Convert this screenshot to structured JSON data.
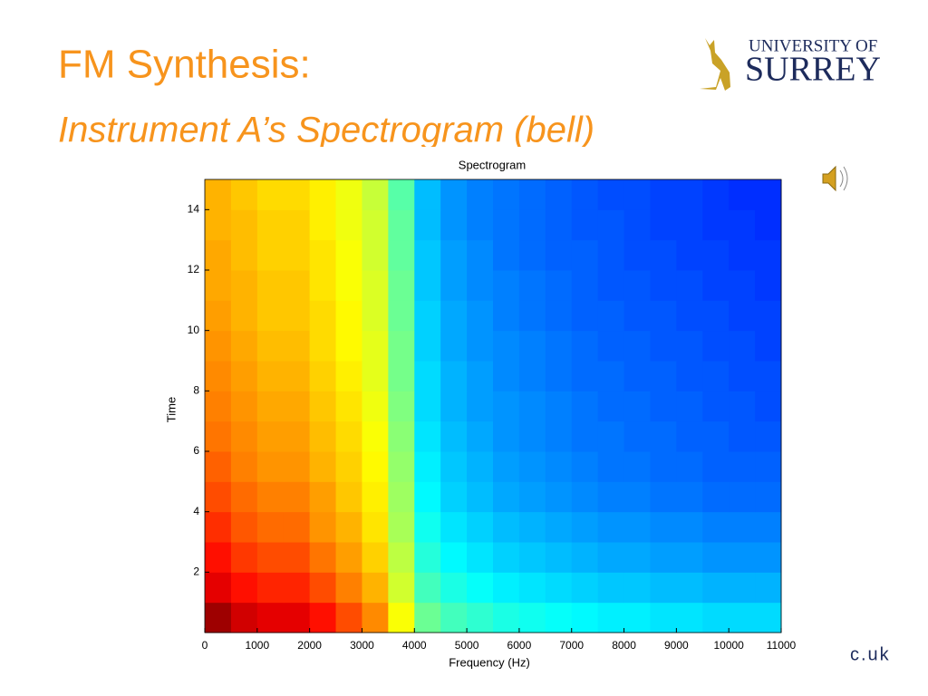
{
  "slide": {
    "title": "FM Synthesis:",
    "subtitle": "Instrument A’s Spectrogram (bell)",
    "logo_top": "UNIVERSITY OF",
    "logo_main": "SURREY",
    "footer": "c.uk"
  },
  "chart_data": {
    "type": "heatmap",
    "title": "Spectrogram",
    "xlabel": "Frequency (Hz)",
    "ylabel": "Time",
    "colormap": "jet",
    "clim": [
      0,
      1
    ],
    "xlim": [
      0,
      11000
    ],
    "ylim": [
      0,
      15
    ],
    "xticks": [
      0,
      1000,
      2000,
      3000,
      4000,
      5000,
      6000,
      7000,
      8000,
      9000,
      10000,
      11000
    ],
    "yticks": [
      2,
      4,
      6,
      8,
      10,
      12,
      14
    ],
    "x_edges": [
      0,
      500,
      1000,
      1500,
      2000,
      2500,
      3000,
      3500,
      4000,
      4500,
      5000,
      5500,
      6000,
      6500,
      7000,
      7500,
      8000,
      8500,
      9000,
      9500,
      10000,
      10500,
      11000
    ],
    "y_edges": [
      0,
      1,
      2,
      3,
      4,
      5,
      6,
      7,
      8,
      9,
      10,
      11,
      12,
      13,
      14,
      15
    ],
    "values": [
      [
        0.97,
        0.92,
        0.9,
        0.9,
        0.86,
        0.8,
        0.74,
        0.62,
        0.48,
        0.44,
        0.42,
        0.4,
        0.39,
        0.38,
        0.37,
        0.36,
        0.36,
        0.35,
        0.35,
        0.34,
        0.34,
        0.34
      ],
      [
        0.9,
        0.86,
        0.84,
        0.84,
        0.8,
        0.75,
        0.7,
        0.58,
        0.44,
        0.4,
        0.38,
        0.36,
        0.35,
        0.34,
        0.33,
        0.32,
        0.32,
        0.31,
        0.31,
        0.3,
        0.3,
        0.3
      ],
      [
        0.86,
        0.82,
        0.8,
        0.8,
        0.76,
        0.72,
        0.67,
        0.56,
        0.41,
        0.37,
        0.35,
        0.33,
        0.32,
        0.31,
        0.3,
        0.29,
        0.29,
        0.28,
        0.28,
        0.27,
        0.27,
        0.27
      ],
      [
        0.83,
        0.79,
        0.77,
        0.77,
        0.73,
        0.7,
        0.65,
        0.54,
        0.39,
        0.35,
        0.33,
        0.31,
        0.3,
        0.29,
        0.28,
        0.27,
        0.27,
        0.26,
        0.26,
        0.25,
        0.25,
        0.25
      ],
      [
        0.8,
        0.77,
        0.75,
        0.75,
        0.72,
        0.68,
        0.64,
        0.53,
        0.37,
        0.33,
        0.31,
        0.29,
        0.28,
        0.27,
        0.26,
        0.25,
        0.25,
        0.24,
        0.24,
        0.23,
        0.23,
        0.23
      ],
      [
        0.78,
        0.75,
        0.73,
        0.73,
        0.7,
        0.67,
        0.63,
        0.52,
        0.36,
        0.32,
        0.3,
        0.28,
        0.27,
        0.26,
        0.25,
        0.24,
        0.24,
        0.23,
        0.23,
        0.22,
        0.22,
        0.22
      ],
      [
        0.76,
        0.74,
        0.72,
        0.72,
        0.69,
        0.66,
        0.62,
        0.51,
        0.35,
        0.31,
        0.29,
        0.27,
        0.26,
        0.25,
        0.24,
        0.24,
        0.23,
        0.23,
        0.22,
        0.22,
        0.21,
        0.21
      ],
      [
        0.75,
        0.73,
        0.71,
        0.71,
        0.68,
        0.65,
        0.61,
        0.5,
        0.34,
        0.3,
        0.28,
        0.27,
        0.26,
        0.25,
        0.24,
        0.23,
        0.23,
        0.22,
        0.22,
        0.21,
        0.21,
        0.2
      ],
      [
        0.74,
        0.72,
        0.7,
        0.7,
        0.67,
        0.64,
        0.6,
        0.49,
        0.34,
        0.3,
        0.28,
        0.26,
        0.25,
        0.24,
        0.23,
        0.23,
        0.22,
        0.22,
        0.21,
        0.21,
        0.2,
        0.2
      ],
      [
        0.73,
        0.71,
        0.69,
        0.69,
        0.66,
        0.63,
        0.6,
        0.49,
        0.33,
        0.29,
        0.27,
        0.26,
        0.25,
        0.24,
        0.23,
        0.22,
        0.22,
        0.21,
        0.21,
        0.2,
        0.2,
        0.19
      ],
      [
        0.72,
        0.7,
        0.68,
        0.68,
        0.66,
        0.63,
        0.59,
        0.48,
        0.33,
        0.29,
        0.27,
        0.25,
        0.24,
        0.23,
        0.22,
        0.22,
        0.21,
        0.21,
        0.2,
        0.2,
        0.19,
        0.19
      ],
      [
        0.71,
        0.7,
        0.68,
        0.68,
        0.65,
        0.62,
        0.59,
        0.48,
        0.32,
        0.28,
        0.26,
        0.25,
        0.24,
        0.23,
        0.22,
        0.21,
        0.21,
        0.2,
        0.2,
        0.19,
        0.19,
        0.18
      ],
      [
        0.71,
        0.69,
        0.67,
        0.67,
        0.65,
        0.62,
        0.58,
        0.47,
        0.32,
        0.28,
        0.26,
        0.24,
        0.23,
        0.22,
        0.22,
        0.21,
        0.2,
        0.2,
        0.19,
        0.19,
        0.18,
        0.18
      ],
      [
        0.7,
        0.69,
        0.67,
        0.67,
        0.64,
        0.61,
        0.58,
        0.47,
        0.31,
        0.27,
        0.25,
        0.24,
        0.23,
        0.22,
        0.21,
        0.21,
        0.2,
        0.19,
        0.19,
        0.18,
        0.18,
        0.17
      ],
      [
        0.7,
        0.68,
        0.66,
        0.66,
        0.64,
        0.61,
        0.57,
        0.46,
        0.31,
        0.27,
        0.25,
        0.24,
        0.23,
        0.22,
        0.21,
        0.2,
        0.2,
        0.19,
        0.19,
        0.18,
        0.17,
        0.17
      ]
    ]
  }
}
